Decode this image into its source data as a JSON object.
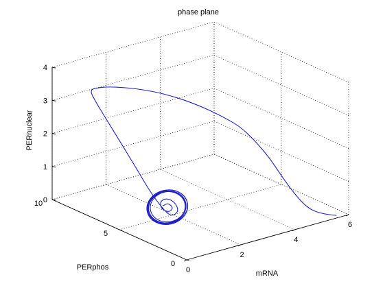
{
  "chart_data": {
    "type": "line3d",
    "title": "phase plane",
    "xlabel": "mRNA",
    "ylabel": "PERphos",
    "zlabel": "PERnuclear",
    "xlim": [
      0,
      6
    ],
    "ylim": [
      0,
      10
    ],
    "zlim": [
      0,
      4
    ],
    "xticks": [
      "0",
      "2",
      "4",
      "6"
    ],
    "yticks": [
      "0",
      "5",
      "10"
    ],
    "zticks": [
      "0",
      "1",
      "2",
      "3",
      "4"
    ],
    "grid": true,
    "series_color": "#1f1fc8",
    "series": [
      {
        "points": [
          [
            5.6,
            0.1,
            0.05
          ],
          [
            5.2,
            0.2,
            0.15
          ],
          [
            4.7,
            0.4,
            0.4
          ],
          [
            4.35,
            0.8,
            0.9
          ],
          [
            4.1,
            1.2,
            1.4
          ],
          [
            3.9,
            1.7,
            1.9
          ],
          [
            3.6,
            2.2,
            2.4
          ],
          [
            3.3,
            2.7,
            2.8
          ],
          [
            2.9,
            3.3,
            3.1
          ],
          [
            2.5,
            3.9,
            3.35
          ],
          [
            2.1,
            4.5,
            3.55
          ],
          [
            1.7,
            5.1,
            3.7
          ],
          [
            1.3,
            5.7,
            3.8
          ],
          [
            0.9,
            6.3,
            3.85
          ],
          [
            0.55,
            6.9,
            3.85
          ],
          [
            0.3,
            7.3,
            3.8
          ],
          [
            0.2,
            7.6,
            3.7
          ],
          [
            0.35,
            7.5,
            3.35
          ],
          [
            0.55,
            7.0,
            2.8
          ],
          [
            0.75,
            6.4,
            2.2
          ],
          [
            0.95,
            5.6,
            1.5
          ],
          [
            1.1,
            5.0,
            0.95
          ],
          [
            1.25,
            4.5,
            0.55
          ],
          [
            1.4,
            4.2,
            0.3
          ],
          [
            1.6,
            4.2,
            0.2
          ],
          [
            1.9,
            4.4,
            0.25
          ],
          [
            2.0,
            4.9,
            0.4
          ],
          [
            1.85,
            5.2,
            0.5
          ],
          [
            1.6,
            5.2,
            0.45
          ],
          [
            1.5,
            4.9,
            0.3
          ],
          [
            1.65,
            4.6,
            0.22
          ],
          [
            1.85,
            4.7,
            0.3
          ],
          [
            1.8,
            5.0,
            0.4
          ],
          [
            1.6,
            5.0,
            0.35
          ]
        ]
      }
    ],
    "limit_cycle": {
      "center": [
        1.7,
        4.85,
        0.32
      ],
      "loops": 6
    }
  }
}
